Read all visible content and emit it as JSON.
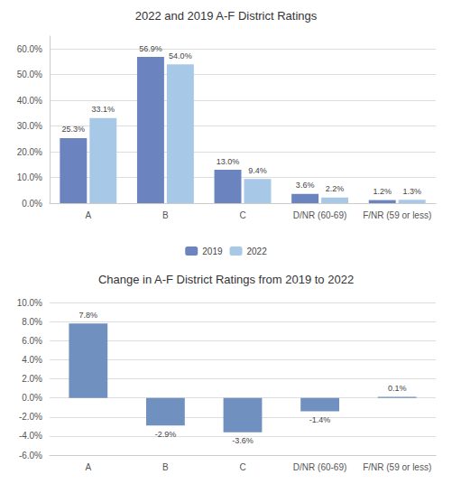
{
  "chart_data": [
    {
      "type": "bar",
      "title": "2022 and 2019 A-F District Ratings",
      "categories": [
        "A",
        "B",
        "C",
        "D/NR (60-69)",
        "F/NR (59 or less)"
      ],
      "series": [
        {
          "name": "2019",
          "color": "#6b84c0",
          "values": [
            25.3,
            56.9,
            13.0,
            3.6,
            1.2
          ],
          "value_labels": [
            "25.3%",
            "56.9%",
            "13.0%",
            "3.6%",
            "1.2%"
          ]
        },
        {
          "name": "2022",
          "color": "#a8c8e8",
          "values": [
            33.1,
            54.0,
            9.4,
            2.2,
            1.3
          ],
          "value_labels": [
            "33.1%",
            "54.0%",
            "9.4%",
            "2.2%",
            "1.3%"
          ]
        }
      ],
      "ylim": [
        0,
        65
      ],
      "yticks": [
        {
          "value": 0,
          "label": "0.0%"
        },
        {
          "value": 10,
          "label": "10.0%"
        },
        {
          "value": 20,
          "label": "20.0%"
        },
        {
          "value": 30,
          "label": "30.0%"
        },
        {
          "value": 40,
          "label": "40.0%"
        },
        {
          "value": 50,
          "label": "50.0%"
        },
        {
          "value": 60,
          "label": "60.0%"
        }
      ],
      "grid": true,
      "legend": "bottom",
      "data_labels": true
    },
    {
      "type": "bar",
      "title": "Change in A-F District Ratings from 2019 to 2022",
      "categories": [
        "A",
        "B",
        "C",
        "D/NR (60-69)",
        "F/NR (59 or less)"
      ],
      "values": [
        7.8,
        -2.9,
        -3.6,
        -1.4,
        0.1
      ],
      "value_labels": [
        "7.8%",
        "-2.9%",
        "-3.6%",
        "-1.4%",
        "0.1%"
      ],
      "color": "#7090c0",
      "ylim": [
        -6,
        10
      ],
      "yticks": [
        {
          "value": -6,
          "label": "-6.0%"
        },
        {
          "value": -4,
          "label": "-4.0%"
        },
        {
          "value": -2,
          "label": "-2.0%"
        },
        {
          "value": 0,
          "label": "0.0%"
        },
        {
          "value": 2,
          "label": "2.0%"
        },
        {
          "value": 4,
          "label": "4.0%"
        },
        {
          "value": 6,
          "label": "6.0%"
        },
        {
          "value": 8,
          "label": "8.0%"
        },
        {
          "value": 10,
          "label": "10.0%"
        }
      ],
      "grid": true,
      "data_labels": true
    }
  ]
}
